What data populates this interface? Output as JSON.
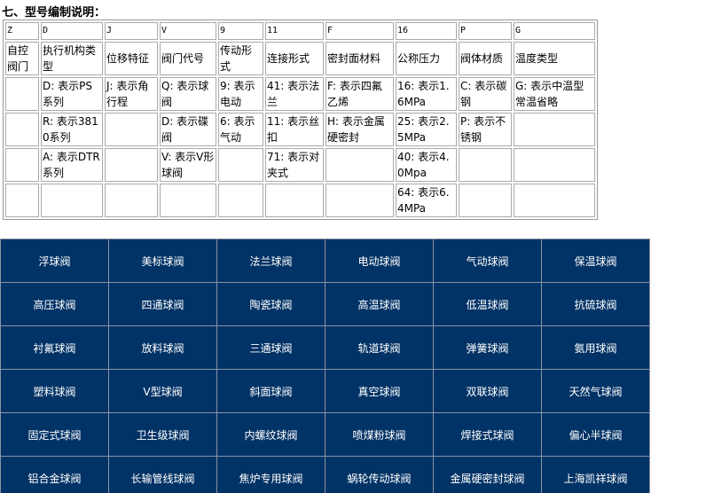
{
  "section_title": "七、型号编制说明：",
  "spec_table": {
    "codes": [
      "Z",
      "D",
      "J",
      "V",
      "9",
      "11",
      "F",
      "16",
      "P",
      "G"
    ],
    "headers": [
      "自控阀门",
      "执行机构类型",
      "位移特征",
      "阀门代号",
      "传动形式",
      "连接形式",
      "密封面材料",
      "公称压力",
      "阀体材质",
      "温度类型"
    ],
    "rows": [
      [
        "",
        "D: 表示PS系列",
        "J: 表示角行程",
        "Q: 表示球阀",
        "9: 表示电动",
        "41: 表示法兰",
        "F: 表示四氟乙烯",
        "16: 表示1.6MPa",
        "C: 表示碳钢",
        "G: 表示中温型常温省略"
      ],
      [
        "",
        "R: 表示3810系列",
        "",
        "D: 表示碟阀",
        "6: 表示气动",
        "11: 表示丝扣",
        "H: 表示金属硬密封",
        "25: 表示2.5MPa",
        "P: 表示不锈钢",
        ""
      ],
      [
        "",
        "A: 表示DTR系列",
        "",
        "V: 表示V形球阀",
        "",
        "71: 表示对夹式",
        "",
        "40: 表示4.0Mpa",
        "",
        ""
      ],
      [
        "",
        "",
        "",
        "",
        "",
        "",
        "",
        "64: 表示6.4MPa",
        "",
        ""
      ]
    ]
  },
  "product_links": [
    [
      "浮球阀",
      "美标球阀",
      "法兰球阀",
      "电动球阀",
      "气动球阀",
      "保温球阀"
    ],
    [
      "高压球阀",
      "四通球阀",
      "陶瓷球阀",
      "高温球阀",
      "低温球阀",
      "抗硫球阀"
    ],
    [
      "衬氟球阀",
      "放料球阀",
      "三通球阀",
      "轨道球阀",
      "弹簧球阀",
      "氨用球阀"
    ],
    [
      "塑料球阀",
      "V型球阀",
      "斜面球阀",
      "真空球阀",
      "双联球阀",
      "天然气球阀"
    ],
    [
      "固定式球阀",
      "卫生级球阀",
      "内螺纹球阀",
      "喷煤粉球阀",
      "焊接式球阀",
      "偏心半球阀"
    ],
    [
      "铝合金球阀",
      "长输管线球阀",
      "焦炉专用球阀",
      "蜗轮传动球阀",
      "金属硬密封球阀",
      "上海凯祥球阀"
    ]
  ],
  "colors": {
    "link_grid_bg": "#023366",
    "link_text": "#ffffff"
  }
}
